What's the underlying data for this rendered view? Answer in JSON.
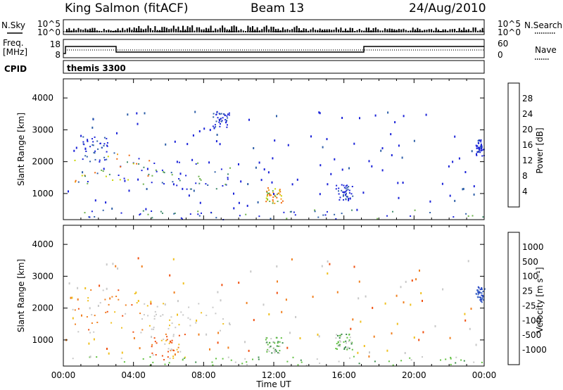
{
  "header": {
    "station": "King Salmon (fitACF)",
    "beam": "Beam 13",
    "date": "24/Aug/2010"
  },
  "strips": {
    "nsky_label": "N.Sky",
    "nsearch_label": "N.Search",
    "count_ticks": [
      "10^5",
      "10^0"
    ],
    "freq_label_line1": "Freq.",
    "freq_label_line2": "[MHz]",
    "freq_ticks": [
      "18",
      "8"
    ],
    "nave_label": "Nave",
    "nave_ticks": [
      "60",
      "0"
    ],
    "cpid_label": "CPID",
    "cpid_value": "themis 3300"
  },
  "axes": {
    "ylabel": "Slant Range [km]",
    "yticks": [
      "1000",
      "2000",
      "3000",
      "4000"
    ],
    "xlabel": "Time UT",
    "xticks": [
      "00:00",
      "04:00",
      "08:00",
      "12:00",
      "16:00",
      "20:00",
      "00:00"
    ]
  },
  "power_bar": {
    "title": "Power [dB]",
    "ticks": [
      "4",
      "8",
      "12",
      "16",
      "20",
      "24",
      "28"
    ]
  },
  "velocity_bar": {
    "title": "Velocity [m s⁻¹]",
    "ticks": [
      "1000",
      "500",
      "100",
      "25",
      "-25",
      "-100",
      "-500",
      "-1000"
    ]
  },
  "chart_data": [
    {
      "type": "heatmap",
      "panel": "power",
      "x_range_hours": [
        0,
        24
      ],
      "y_range_km": [
        180,
        4600
      ],
      "colorbar": {
        "label": "Power [dB]",
        "colors": [
          "#1a22d8",
          "#2e5fa8",
          "#3f8a6a",
          "#6ab048",
          "#c8d400",
          "#f4a018",
          "#f06a10",
          "#e02810"
        ],
        "ticks": [
          4,
          8,
          12,
          16,
          20,
          24,
          28
        ]
      },
      "scatter_regions": [
        {
          "t": [
            0.6,
            5.0
          ],
          "r": [
            1200,
            2300
          ],
          "dominant": "green-orange"
        },
        {
          "t": [
            1.0,
            2.5
          ],
          "r": [
            2000,
            2800
          ],
          "dominant": "blue"
        },
        {
          "t": [
            5.0,
            9.5
          ],
          "r": [
            1100,
            2000
          ],
          "dominant": "blue-green"
        },
        {
          "t": [
            8.5,
            9.5
          ],
          "r": [
            3100,
            3600
          ],
          "dominant": "blue"
        },
        {
          "t": [
            11.5,
            12.5
          ],
          "r": [
            700,
            1200
          ],
          "dominant": "orange"
        },
        {
          "t": [
            15.5,
            16.5
          ],
          "r": [
            800,
            1300
          ],
          "dominant": "blue"
        },
        {
          "t": [
            23.5,
            24
          ],
          "r": [
            2200,
            2700
          ],
          "dominant": "blue"
        },
        {
          "t": [
            0.5,
            24
          ],
          "r": [
            200,
            500
          ],
          "dominant": "blue-green"
        }
      ]
    },
    {
      "type": "heatmap",
      "panel": "velocity",
      "x_range_hours": [
        0,
        24
      ],
      "y_range_km": [
        180,
        4600
      ],
      "colorbar": {
        "label": "Velocity [m s⁻¹]",
        "colors": [
          "#2040c0",
          "#4a70c8",
          "#3a8a4a",
          "#60c040",
          "#c8c8c8",
          "#f0c020",
          "#f08020",
          "#f05010",
          "#e01010"
        ],
        "ticks": [
          1000,
          500,
          100,
          25,
          -25,
          -100,
          -500,
          -1000
        ]
      },
      "scatter_regions": [
        {
          "t": [
            0.5,
            4.5
          ],
          "r": [
            1200,
            2600
          ],
          "dominant": "orange"
        },
        {
          "t": [
            4.5,
            9.5
          ],
          "r": [
            1300,
            2200
          ],
          "dominant": "grey"
        },
        {
          "t": [
            5.0,
            7.0
          ],
          "r": [
            400,
            1200
          ],
          "dominant": "orange-grey"
        },
        {
          "t": [
            11.5,
            12.5
          ],
          "r": [
            600,
            1100
          ],
          "dominant": "green"
        },
        {
          "t": [
            15.5,
            16.5
          ],
          "r": [
            700,
            1200
          ],
          "dominant": "green"
        },
        {
          "t": [
            23.5,
            24
          ],
          "r": [
            2200,
            2700
          ],
          "dominant": "blue"
        },
        {
          "t": [
            0.5,
            24
          ],
          "r": [
            200,
            500
          ],
          "dominant": "green"
        }
      ]
    }
  ]
}
